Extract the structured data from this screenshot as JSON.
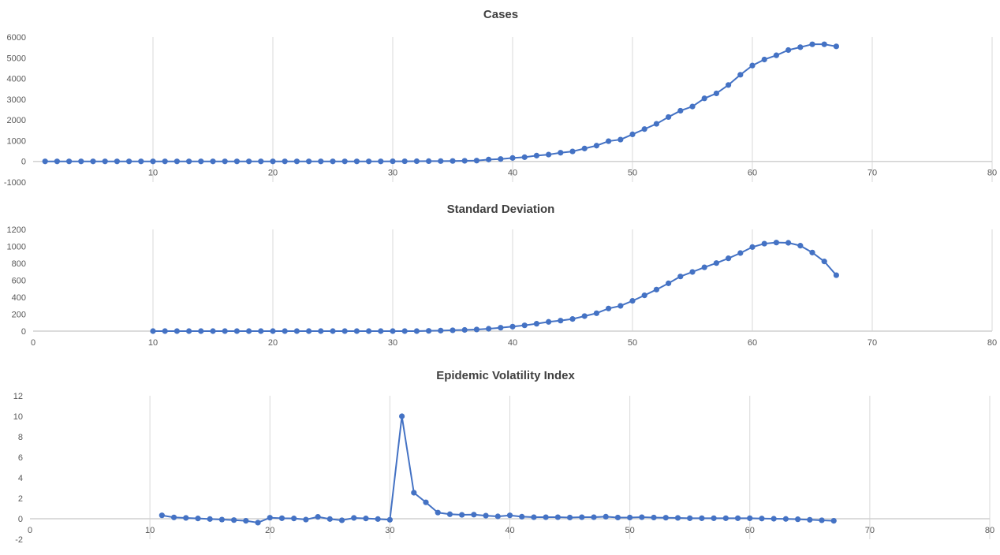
{
  "chart_data": [
    {
      "type": "line",
      "title": "Cases",
      "xlabel": "",
      "ylabel": "",
      "xlim": [
        0,
        80
      ],
      "ylim": [
        -1000,
        6000
      ],
      "xticks": [
        "10",
        "20",
        "30",
        "40",
        "50",
        "60",
        "70",
        "80"
      ],
      "xtick_values": [
        10,
        20,
        30,
        40,
        50,
        60,
        70,
        80
      ],
      "yticks": [
        "-1000",
        "0",
        "1000",
        "2000",
        "3000",
        "4000",
        "5000",
        "6000"
      ],
      "ytick_values": [
        -1000,
        0,
        1000,
        2000,
        3000,
        4000,
        5000,
        6000
      ],
      "grid": "vertical",
      "color": "#4472C4",
      "x_start": 1,
      "values": [
        0,
        0,
        0,
        0,
        0,
        0,
        0,
        0,
        0,
        0,
        0,
        0,
        0,
        0,
        0,
        0,
        0,
        0,
        0,
        0,
        0,
        0,
        0,
        0,
        0,
        0,
        0,
        0,
        0,
        5,
        5,
        8,
        12,
        15,
        20,
        28,
        38,
        89,
        114,
        165,
        203,
        279,
        329,
        418,
        481,
        621,
        760,
        976,
        1052,
        1305,
        1558,
        1812,
        2141,
        2445,
        2648,
        3041,
        3282,
        3687,
        4181,
        4625,
        4916,
        5119,
        5372,
        5511,
        5651,
        5651,
        5550
      ]
    },
    {
      "type": "line",
      "title": "Standard Deviation",
      "xlabel": "",
      "ylabel": "",
      "xlim": [
        0,
        80
      ],
      "ylim": [
        0,
        1200
      ],
      "xticks": [
        "0",
        "10",
        "20",
        "30",
        "40",
        "50",
        "60",
        "70",
        "80"
      ],
      "xtick_values": [
        0,
        10,
        20,
        30,
        40,
        50,
        60,
        70,
        80
      ],
      "yticks": [
        "0",
        "200",
        "400",
        "600",
        "800",
        "1000",
        "1200"
      ],
      "ytick_values": [
        0,
        200,
        400,
        600,
        800,
        1000,
        1200
      ],
      "grid": "vertical",
      "color": "#4472C4",
      "x_start": 10,
      "values": [
        0,
        0,
        0,
        0,
        0,
        0,
        0,
        0,
        0,
        0,
        0,
        0,
        0,
        0,
        0,
        0,
        0,
        0,
        0,
        0,
        0,
        0,
        0,
        3,
        6,
        10,
        14,
        19,
        28,
        40,
        53,
        68,
        87,
        109,
        124,
        143,
        177,
        211,
        267,
        298,
        357,
        422,
        490,
        564,
        645,
        698,
        753,
        803,
        859,
        921,
        992,
        1032,
        1045,
        1042,
        1008,
        927,
        822,
        660
      ]
    },
    {
      "type": "line",
      "title": "Epidemic Volatility Index",
      "xlabel": "",
      "ylabel": "",
      "xlim": [
        0,
        80
      ],
      "ylim": [
        -2,
        12
      ],
      "xticks": [
        "0",
        "10",
        "20",
        "30",
        "40",
        "50",
        "60",
        "70",
        "80"
      ],
      "xtick_values": [
        0,
        10,
        20,
        30,
        40,
        50,
        60,
        70,
        80
      ],
      "yticks": [
        "-2",
        "0",
        "2",
        "4",
        "6",
        "8",
        "10",
        "12"
      ],
      "ytick_values": [
        -2,
        0,
        2,
        4,
        6,
        8,
        10,
        12
      ],
      "grid": "vertical",
      "color": "#4472C4",
      "x_start": 11,
      "values": [
        0.33,
        0.13,
        0.08,
        0.03,
        -0.03,
        -0.08,
        -0.13,
        -0.2,
        -0.38,
        0.1,
        0.05,
        0.03,
        -0.08,
        0.18,
        -0.03,
        -0.15,
        0.08,
        0.03,
        -0.03,
        -0.1,
        10.0,
        2.54,
        1.6,
        0.6,
        0.44,
        0.38,
        0.4,
        0.3,
        0.23,
        0.33,
        0.2,
        0.15,
        0.15,
        0.15,
        0.12,
        0.15,
        0.15,
        0.2,
        0.12,
        0.12,
        0.15,
        0.12,
        0.1,
        0.08,
        0.05,
        0.05,
        0.05,
        0.05,
        0.05,
        0.05,
        0.02,
        0,
        -0.02,
        -0.05,
        -0.1,
        -0.15,
        -0.2
      ]
    }
  ]
}
